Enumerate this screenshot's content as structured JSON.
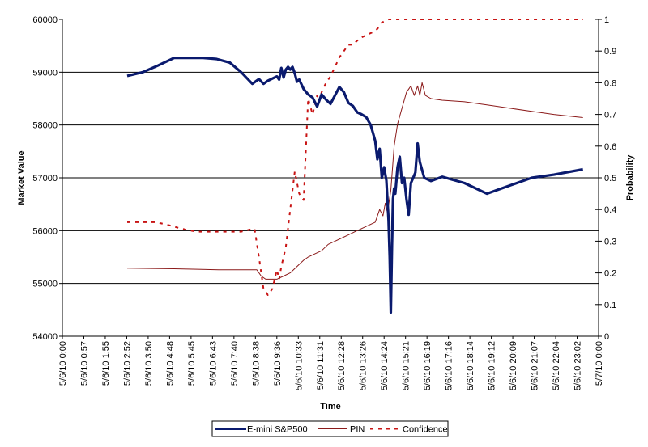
{
  "chart_data": {
    "type": "line",
    "title": "",
    "xlabel": "Time",
    "ylabel": "Market Value",
    "y2label": "Probability",
    "ylim": [
      54000,
      60000
    ],
    "y2lim": [
      0,
      1
    ],
    "grid": "horizontal major gridlines on primary axis",
    "legend_position": "bottom",
    "x_ticks": [
      "5/6/10 0:00",
      "5/6/10 0:57",
      "5/6/10 1:55",
      "5/6/10 2:52",
      "5/6/10 3:50",
      "5/6/10 4:48",
      "5/6/10 5:45",
      "5/6/10 6:43",
      "5/6/10 7:40",
      "5/6/10 8:38",
      "5/6/10 9:36",
      "5/6/10 10:33",
      "5/6/10 11:31",
      "5/6/10 12:28",
      "5/6/10 13:26",
      "5/6/10 14:24",
      "5/6/10 15:21",
      "5/6/10 16:19",
      "5/6/10 17:16",
      "5/6/10 18:14",
      "5/6/10 19:12",
      "5/6/10 20:09",
      "5/6/10 21:07",
      "5/6/10 22:04",
      "5/6/10 23:02",
      "5/7/10 0:00"
    ],
    "y_ticks": [
      "54000",
      "55000",
      "56000",
      "57000",
      "58000",
      "59000",
      "60000"
    ],
    "y2_ticks": [
      "0",
      "0.1",
      "0.2",
      "0.3",
      "0.4",
      "0.5",
      "0.6",
      "0.7",
      "0.8",
      "0.9",
      "1"
    ],
    "x_unit": "hours since 5/6/10 0:00",
    "series": [
      {
        "name": "E-mini S&P500",
        "axis": "left",
        "color": "#0a1a6e",
        "style": "solid-thick",
        "x": [
          2.9,
          3.6,
          4.3,
          5.0,
          5.7,
          6.3,
          6.9,
          7.5,
          8.0,
          8.5,
          8.8,
          9.0,
          9.2,
          9.4,
          9.6,
          9.7,
          9.8,
          9.9,
          10.0,
          10.1,
          10.2,
          10.3,
          10.4,
          10.5,
          10.6,
          10.8,
          11.0,
          11.2,
          11.4,
          11.6,
          11.8,
          12.0,
          12.2,
          12.4,
          12.6,
          12.8,
          13.0,
          13.2,
          13.4,
          13.6,
          13.8,
          14.0,
          14.1,
          14.2,
          14.3,
          14.4,
          14.5,
          14.6,
          14.65,
          14.7,
          14.75,
          14.8,
          14.85,
          14.9,
          15.0,
          15.1,
          15.2,
          15.3,
          15.4,
          15.5,
          15.6,
          15.7,
          15.8,
          15.9,
          16.0,
          16.2,
          16.5,
          17.0,
          18.0,
          19.0,
          20.0,
          21.0,
          22.0,
          23.3
        ],
        "values": [
          58930,
          59000,
          59130,
          59270,
          59270,
          59270,
          59250,
          59180,
          59000,
          58780,
          58870,
          58780,
          58840,
          58880,
          58920,
          58860,
          59080,
          58900,
          59050,
          59100,
          59050,
          59100,
          58980,
          58820,
          58860,
          58680,
          58580,
          58520,
          58350,
          58580,
          58480,
          58400,
          58560,
          58720,
          58620,
          58420,
          58360,
          58240,
          58200,
          58150,
          58000,
          57700,
          57350,
          57550,
          57000,
          57200,
          56950,
          56200,
          55500,
          54450,
          55700,
          56600,
          56800,
          56700,
          57200,
          57400,
          56900,
          57000,
          56600,
          56300,
          56900,
          57000,
          57100,
          57650,
          57300,
          57000,
          56940,
          57020,
          56900,
          56700,
          56850,
          57000,
          57060,
          57160
        ]
      },
      {
        "name": "PIN",
        "axis": "right",
        "color": "#8b1a1a",
        "style": "solid-thin",
        "x": [
          2.9,
          5.0,
          7.0,
          8.7,
          8.9,
          9.1,
          9.6,
          9.9,
          10.2,
          10.5,
          10.8,
          11.0,
          11.3,
          11.6,
          11.9,
          12.2,
          12.5,
          12.8,
          13.1,
          13.4,
          13.7,
          14.0,
          14.2,
          14.35,
          14.45,
          14.55,
          14.7,
          14.85,
          15.0,
          15.2,
          15.4,
          15.6,
          15.75,
          15.9,
          16.0,
          16.1,
          16.25,
          16.5,
          17.0,
          18.0,
          19.0,
          20.0,
          21.0,
          22.0,
          23.3
        ],
        "values": [
          0.215,
          0.213,
          0.21,
          0.21,
          0.19,
          0.18,
          0.18,
          0.19,
          0.2,
          0.22,
          0.24,
          0.25,
          0.26,
          0.27,
          0.29,
          0.3,
          0.31,
          0.32,
          0.33,
          0.34,
          0.35,
          0.36,
          0.4,
          0.38,
          0.42,
          0.39,
          0.46,
          0.6,
          0.67,
          0.72,
          0.77,
          0.79,
          0.76,
          0.79,
          0.76,
          0.8,
          0.76,
          0.75,
          0.745,
          0.74,
          0.73,
          0.72,
          0.71,
          0.7,
          0.69
        ]
      },
      {
        "name": "Confidence",
        "axis": "right",
        "color": "#c81414",
        "style": "dashed",
        "x": [
          2.9,
          3.5,
          4.2,
          4.8,
          5.3,
          6.0,
          6.7,
          7.4,
          8.0,
          8.6,
          8.8,
          9.0,
          9.2,
          9.4,
          9.6,
          9.7,
          9.8,
          10.0,
          10.2,
          10.4,
          10.6,
          10.8,
          11.0,
          11.2,
          11.4,
          11.5,
          11.6,
          11.8,
          12.0,
          12.2,
          12.4,
          12.6,
          12.8,
          13.0,
          13.3,
          13.6,
          13.9,
          14.1,
          14.3,
          14.6,
          15.0,
          16.0,
          18.0,
          20.0,
          22.0,
          23.3
        ],
        "values": [
          0.36,
          0.36,
          0.36,
          0.35,
          0.34,
          0.33,
          0.33,
          0.33,
          0.33,
          0.34,
          0.25,
          0.15,
          0.13,
          0.15,
          0.21,
          0.18,
          0.22,
          0.28,
          0.4,
          0.52,
          0.45,
          0.43,
          0.75,
          0.7,
          0.76,
          0.74,
          0.77,
          0.8,
          0.82,
          0.85,
          0.88,
          0.9,
          0.92,
          0.92,
          0.94,
          0.95,
          0.96,
          0.97,
          0.99,
          1.0,
          1.0,
          1.0,
          1.0,
          1.0,
          1.0,
          1.0
        ]
      }
    ]
  },
  "axes": {
    "x_title": "Time",
    "y_left_title": "Market Value",
    "y_right_title": "Probability"
  },
  "legend": {
    "items": [
      {
        "label": "E-mini S&P500",
        "color": "#0a1a6e"
      },
      {
        "label": "PIN",
        "color": "#8b1a1a"
      },
      {
        "label": "Confidence",
        "color": "#c81414"
      }
    ]
  }
}
